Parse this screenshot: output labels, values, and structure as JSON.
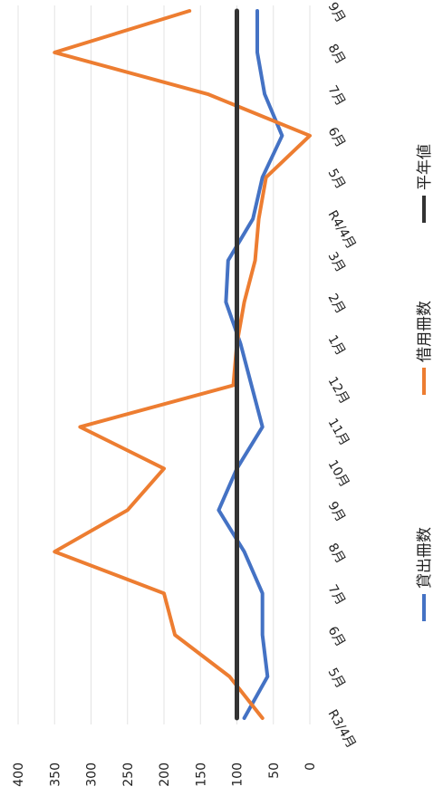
{
  "chart_data": {
    "type": "line",
    "orientation": "rotated-90-clockwise",
    "categories": [
      "R3/4月",
      "5月",
      "6月",
      "7月",
      "8月",
      "9月",
      "10月",
      "11月",
      "12月",
      "1月",
      "2月",
      "3月",
      "R4/4月",
      "5月",
      "6月",
      "7月",
      "8月",
      "9月"
    ],
    "ylim": [
      0,
      400
    ],
    "yticks": [
      0,
      50,
      100,
      150,
      200,
      250,
      300,
      350,
      400
    ],
    "grid": true,
    "legend_position": "right",
    "series": [
      {
        "name": "貸出冊数",
        "color": "#4472C4",
        "values": [
          90,
          58,
          65,
          65,
          90,
          125,
          100,
          65,
          80,
          95,
          115,
          112,
          78,
          65,
          38,
          62,
          72,
          72
        ]
      },
      {
        "name": "借用冊数",
        "color": "#ED7D31",
        "values": [
          65,
          110,
          185,
          200,
          350,
          250,
          200,
          315,
          105,
          100,
          90,
          75,
          70,
          60,
          0,
          140,
          350,
          165
        ]
      },
      {
        "name": "平年値",
        "color": "#333333",
        "values": [
          100,
          100,
          100,
          100,
          100,
          100,
          100,
          100,
          100,
          100,
          100,
          100,
          100,
          100,
          100,
          100,
          100,
          100
        ]
      }
    ]
  }
}
